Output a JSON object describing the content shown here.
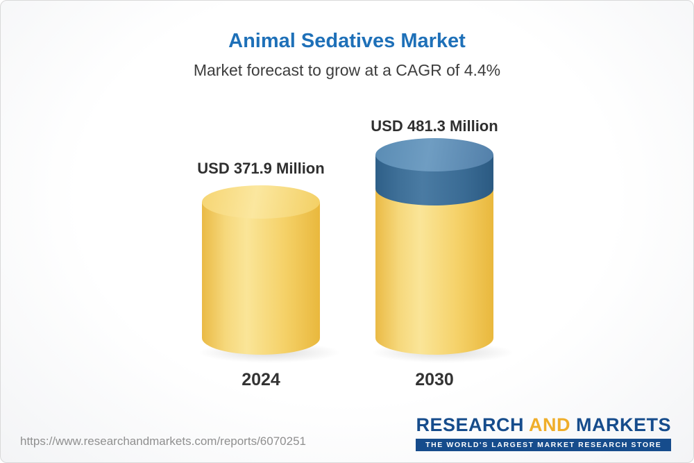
{
  "header": {
    "title": "Animal Sedatives Market",
    "subtitle": "Market forecast to grow at a CAGR of 4.4%"
  },
  "chart_data": {
    "type": "bar",
    "title": "Animal Sedatives Market",
    "subtitle": "Market forecast to grow at a CAGR of 4.4%",
    "categories": [
      "2024",
      "2030"
    ],
    "values": [
      371.9,
      481.3
    ],
    "unit": "USD Million",
    "value_labels": [
      "USD 371.9 Million",
      "USD 481.3 Million"
    ],
    "cagr_pct": 4.4,
    "grid": false,
    "legend": "none",
    "bar_style": "3d-cylinder",
    "colors": {
      "base_segment": "#F6D26A",
      "growth_segment": "#44789F",
      "title": "#1E70B8",
      "label_text": "#2F2F2F"
    }
  },
  "footer": {
    "report_url": "https://www.researchandmarkets.com/reports/6070251",
    "logo": {
      "word_research": "RESEARCH",
      "word_and": "AND",
      "word_markets": "MARKETS",
      "tagline": "THE WORLD'S LARGEST MARKET RESEARCH STORE"
    }
  }
}
